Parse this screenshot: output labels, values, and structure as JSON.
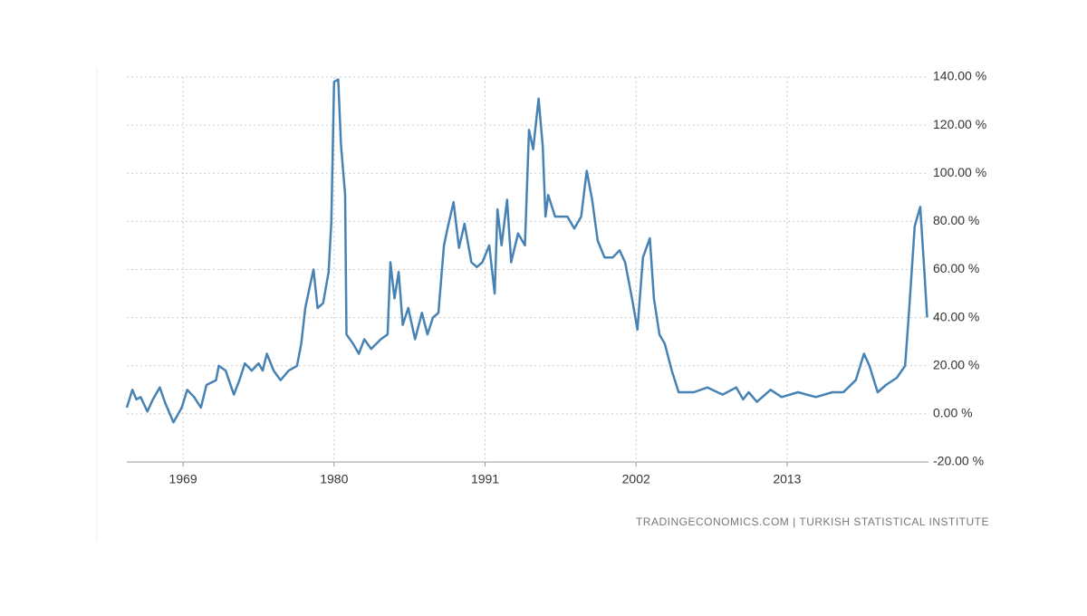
{
  "chart_data": {
    "type": "line",
    "color": "#4682b4",
    "grid": true,
    "source": "TRADINGECONOMICS.COM  |  TURKISH STATISTICAL INSTITUTE",
    "xlim": [
      1964.9,
      2023.3
    ],
    "xticks": [
      1969,
      1980,
      1991,
      2002,
      2013
    ],
    "ylim": [
      -20,
      140
    ],
    "yticks": [
      {
        "value": -20,
        "label": "-20.00 %"
      },
      {
        "value": 0,
        "label": "0.00 %"
      },
      {
        "value": 20,
        "label": "20.00 %"
      },
      {
        "value": 40,
        "label": "40.00 %"
      },
      {
        "value": 60,
        "label": "60.00 %"
      },
      {
        "value": 80,
        "label": "80.00 %"
      },
      {
        "value": 100,
        "label": "100.00 %"
      },
      {
        "value": 120,
        "label": "120.00 %"
      },
      {
        "value": 140,
        "label": "140.00 %"
      }
    ],
    "x": [
      1964.9,
      1965.3,
      1965.6,
      1965.9,
      1966.4,
      1966.8,
      1967.3,
      1967.7,
      1968.3,
      1968.9,
      1969.3,
      1969.8,
      1970.3,
      1970.7,
      1971.4,
      1971.6,
      1972.1,
      1972.7,
      1973.1,
      1973.5,
      1974.0,
      1974.5,
      1974.8,
      1975.1,
      1975.6,
      1976.1,
      1976.7,
      1977.3,
      1977.6,
      1977.9,
      1978.2,
      1978.5,
      1978.8,
      1979.2,
      1979.6,
      1979.8,
      1980.0,
      1980.3,
      1980.5,
      1980.8,
      1980.9,
      1981.4,
      1981.8,
      1982.2,
      1982.7,
      1983.4,
      1983.9,
      1984.1,
      1984.4,
      1984.7,
      1985.0,
      1985.4,
      1985.9,
      1986.4,
      1986.8,
      1987.2,
      1987.6,
      1988.0,
      1988.3,
      1988.7,
      1989.1,
      1989.5,
      1990.0,
      1990.4,
      1990.8,
      1991.3,
      1991.7,
      1991.9,
      1992.2,
      1992.6,
      1992.9,
      1993.4,
      1993.9,
      1994.2,
      1994.5,
      1994.9,
      1995.2,
      1995.4,
      1995.6,
      1996.1,
      1997.0,
      1997.5,
      1998.0,
      1998.4,
      1998.8,
      1999.2,
      1999.7,
      2000.3,
      2000.8,
      2001.2,
      2001.7,
      2002.1,
      2002.5,
      2003.0,
      2003.3,
      2003.7,
      2004.1,
      2004.6,
      2005.1,
      2006.2,
      2007.2,
      2008.3,
      2009.3,
      2009.8,
      2010.2,
      2010.8,
      2011.8,
      2012.6,
      2013.8,
      2015.1,
      2016.3,
      2017.1,
      2018.0,
      2018.6,
      2019.0,
      2019.6,
      2020.2,
      2021.0,
      2021.6,
      2021.9,
      2022.3,
      2022.7,
      2023.0,
      2023.2
    ],
    "values": [
      2.6,
      10,
      6,
      7,
      1,
      6,
      11,
      4.5,
      -3.5,
      2.6,
      10,
      7,
      2.6,
      12,
      14,
      20,
      18,
      8,
      14,
      21,
      18,
      21,
      18,
      25,
      18,
      14,
      18,
      20,
      29,
      44,
      52,
      60,
      44,
      46,
      59,
      80,
      138,
      139,
      112,
      91,
      33,
      29,
      25,
      31,
      27,
      31,
      33,
      63,
      48,
      59,
      37,
      44,
      31,
      42,
      33,
      40,
      42,
      70,
      78,
      88,
      69,
      79,
      63,
      61,
      63,
      70,
      50,
      85,
      70,
      89,
      63,
      75,
      70,
      118,
      110,
      131,
      111,
      82,
      91,
      82,
      82,
      77,
      82,
      101,
      89,
      72,
      65,
      65,
      68,
      63,
      48,
      35,
      65,
      73,
      48,
      33,
      29,
      18,
      9,
      9,
      11,
      8,
      11,
      6,
      9,
      5,
      10,
      7,
      9,
      7,
      9,
      9,
      14,
      25,
      20,
      9,
      12,
      15,
      20,
      44,
      78,
      86,
      59,
      40
    ]
  }
}
